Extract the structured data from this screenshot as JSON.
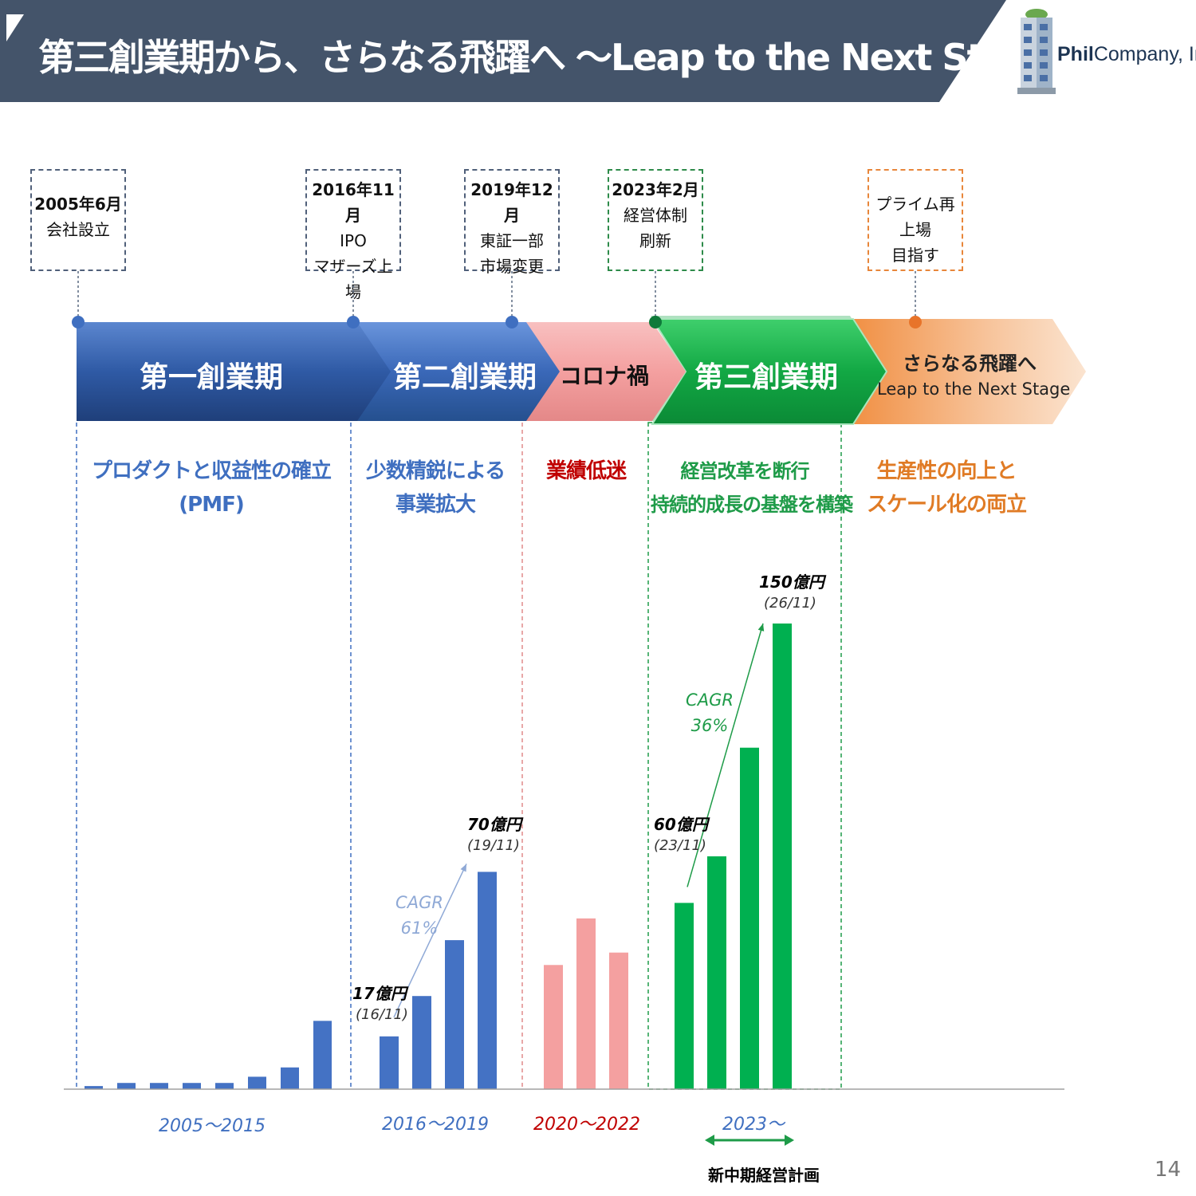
{
  "header": {
    "title": "第三創業期から、さらなる飛躍へ ～Leap to the Next Stage",
    "logo": {
      "brand": "Phil",
      "suffix": "Company, Inc"
    },
    "colors": {
      "bar": "#44546a",
      "accent": "#ffffff"
    }
  },
  "milestones": [
    {
      "date": "2005年6月",
      "lines": [
        "会社設立",
        ""
      ]
    },
    {
      "date": "2016年11月",
      "lines": [
        "IPO",
        "マザーズ上場"
      ]
    },
    {
      "date": "2019年12月",
      "lines": [
        "東証一部",
        "市場変更"
      ]
    },
    {
      "date": "2023年2月",
      "lines": [
        "経営体制",
        "刷新"
      ]
    },
    {
      "date": "",
      "lines": [
        "プライム再上場",
        "目指す"
      ]
    }
  ],
  "phases": [
    {
      "label": "第一創業期",
      "color": "#2e5597"
    },
    {
      "label": "第二創業期",
      "color": "#3566b8"
    },
    {
      "label": "コロナ禍",
      "color": "#f4a0a0"
    },
    {
      "label": "第三創業期",
      "color": "#1ea94c"
    },
    {
      "label": "さらなる飛躍へ",
      "sub": "Leap to the Next Stage",
      "color": "#f2a56c"
    }
  ],
  "descriptions": [
    {
      "lines": [
        "プロダクトと収益性の確立",
        "(PMF)"
      ],
      "color": "#3f6fc0"
    },
    {
      "lines": [
        "少数精鋭による",
        "事業拡大"
      ],
      "color": "#3f6fc0"
    },
    {
      "lines": [
        "業績低迷",
        ""
      ],
      "color": "#c00000"
    },
    {
      "lines": [
        "経営改革を断行",
        "持続的成長の基盤を構築"
      ],
      "color": "#1e9b48"
    },
    {
      "lines": [
        "生産性の向上と",
        "スケール化の両立"
      ],
      "color": "#e07b25"
    }
  ],
  "chart_data": {
    "type": "bar",
    "unit": "億円",
    "series": [
      {
        "period": "2005～2015",
        "color": "#4472c4",
        "values": [
          1,
          2,
          2,
          2,
          2,
          4,
          7,
          22
        ]
      },
      {
        "period": "2016～2019",
        "color": "#4472c4",
        "values": [
          17,
          30,
          48,
          70
        ]
      },
      {
        "period": "2020～2022",
        "color": "#f4a0a0",
        "values": [
          40,
          55,
          44
        ]
      },
      {
        "period": "2023～",
        "color": "#00b050",
        "values": [
          60,
          75,
          110,
          150
        ]
      }
    ],
    "annotations": [
      {
        "value": "17億円",
        "sub": "(16/11)"
      },
      {
        "value": "70億円",
        "sub": "(19/11)"
      },
      {
        "value": "60億円",
        "sub": "(23/11)"
      },
      {
        "value": "150億円",
        "sub": "(26/11)"
      }
    ],
    "cagr": [
      {
        "label": "CAGR",
        "value": "61%",
        "color": "#8fa9d6"
      },
      {
        "label": "CAGR",
        "value": "36%",
        "color": "#1e9b48"
      }
    ],
    "period_colors": [
      "#3f6fc0",
      "#3f6fc0",
      "#c00000",
      "#3f6fc0"
    ]
  },
  "plan_label": "新中期経営計画",
  "page_number": "14"
}
